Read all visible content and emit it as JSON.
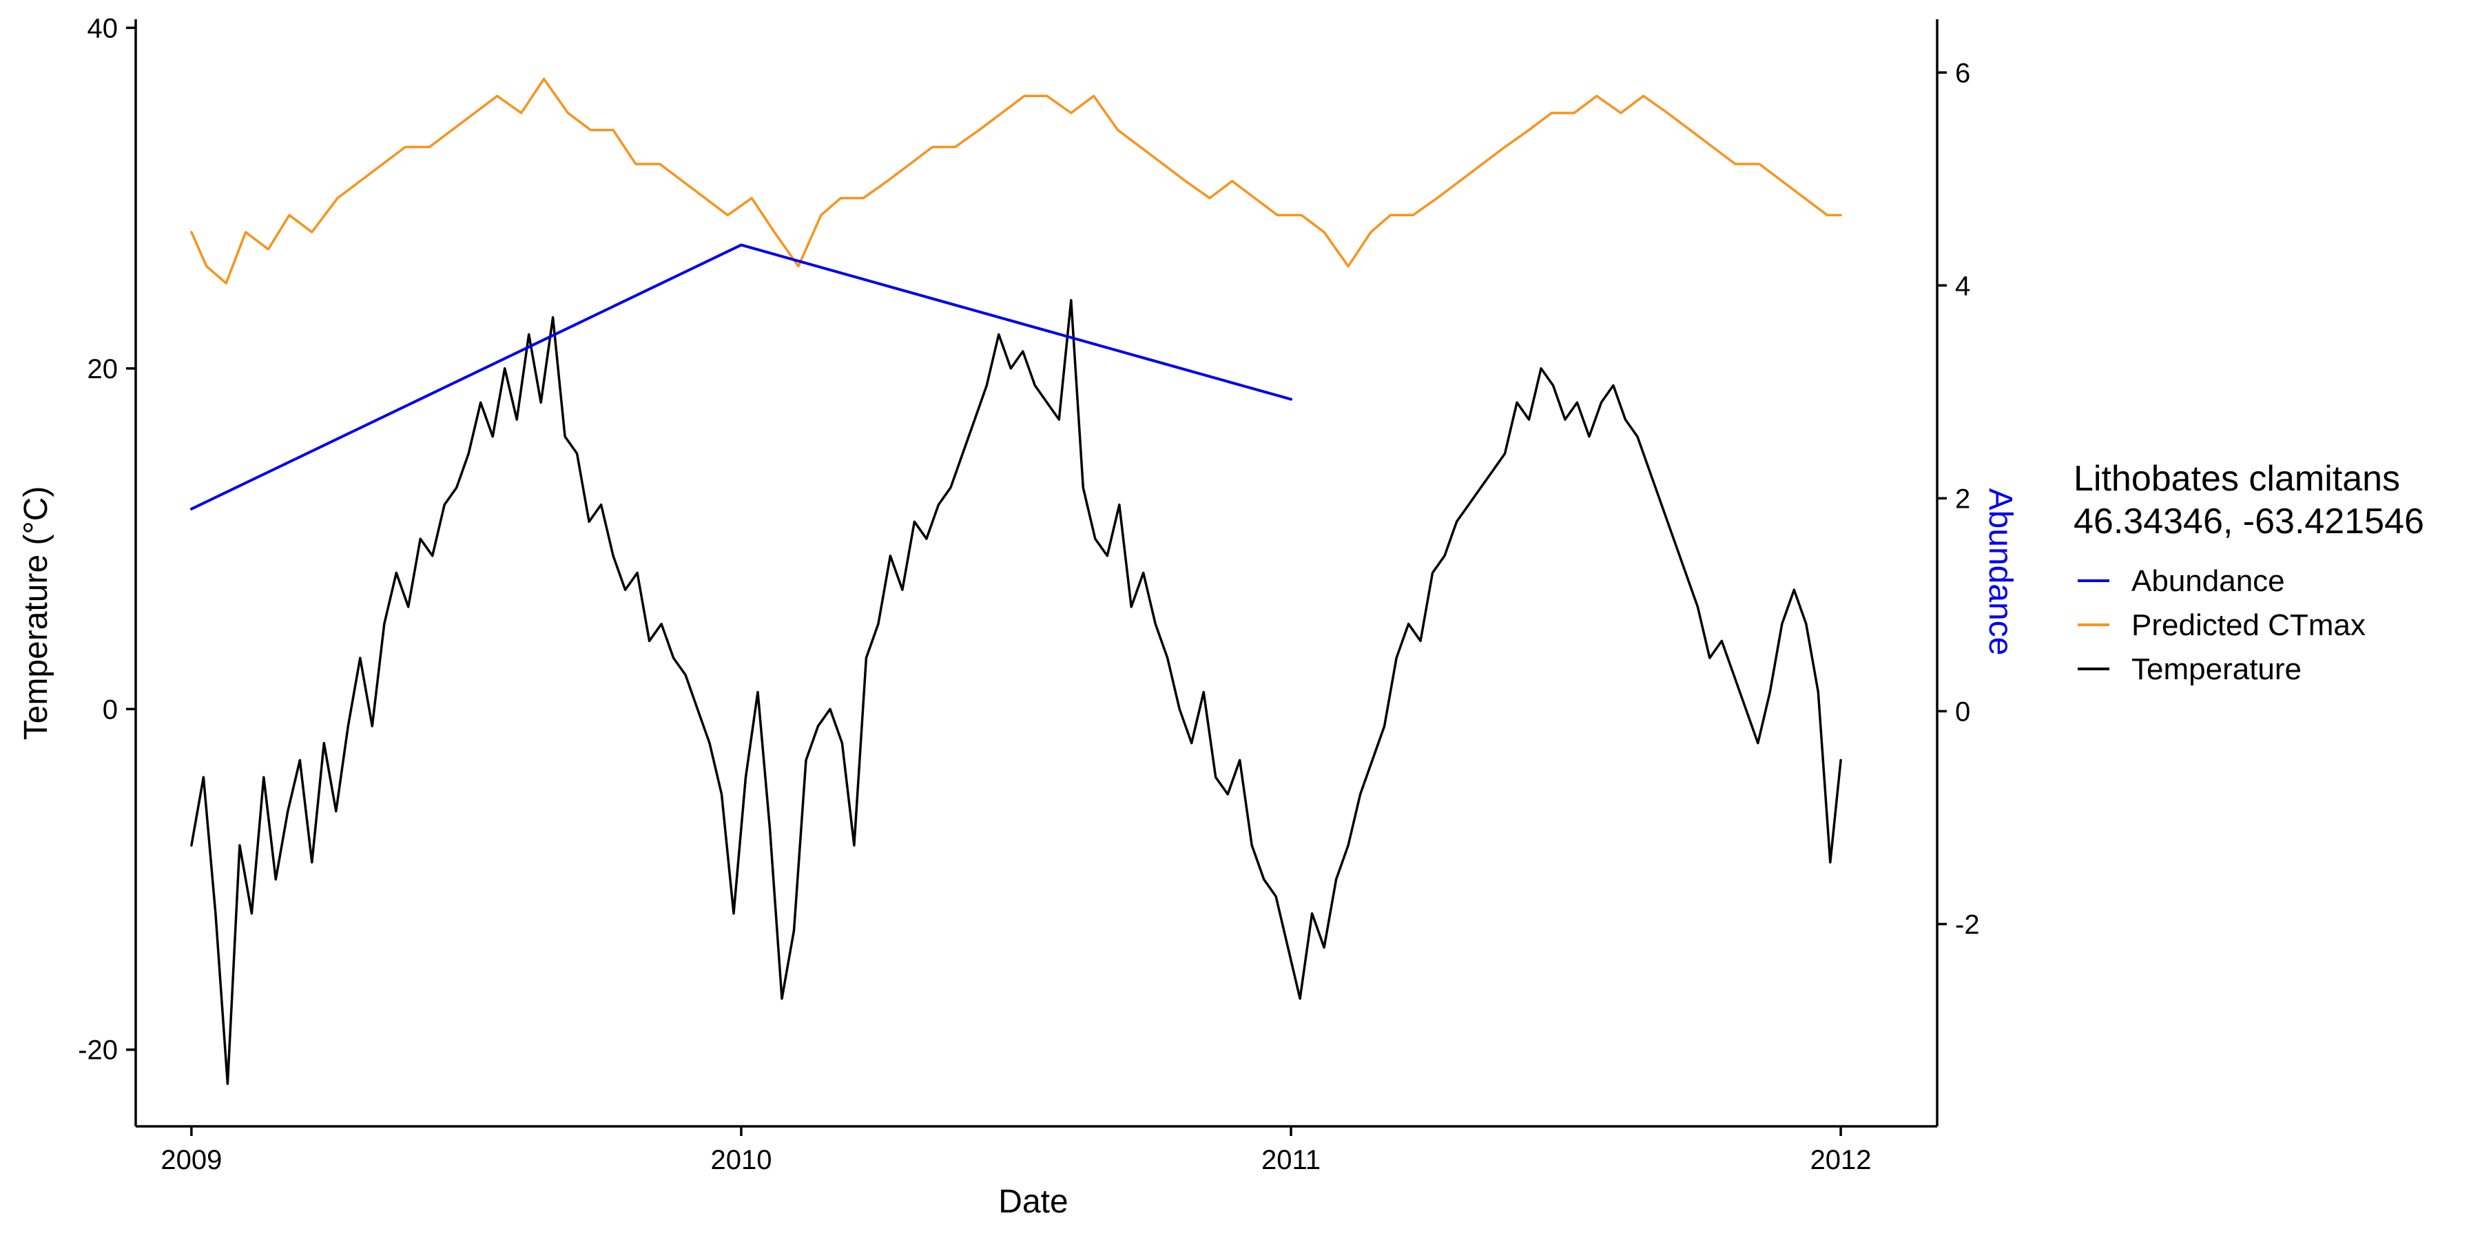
{
  "chart_data": {
    "type": "line",
    "title": "",
    "xlabel": "Date",
    "ylabel_left": "Temperature (°C)",
    "ylabel_right": "Abundance",
    "x_type": "date",
    "xlim": [
      "2008-11-25",
      "2012-03-05"
    ],
    "x_ticks": [
      "2009-01-01",
      "2010-01-01",
      "2011-01-01",
      "2012-01-01"
    ],
    "x_tick_labels": [
      "2009",
      "2010",
      "2011",
      "2012"
    ],
    "ylim_left": [
      -24.5,
      40.5
    ],
    "y_ticks_left": [
      -20,
      0,
      20,
      40
    ],
    "y_tick_labels_left": [
      "-20",
      "0",
      "20",
      "40"
    ],
    "ylim_right": [
      -3.9,
      6.5
    ],
    "y_ticks_right": [
      -2,
      0,
      2,
      4,
      6
    ],
    "y_tick_labels_right": [
      "-2",
      "0",
      "2",
      "4",
      "6"
    ],
    "grid": false,
    "legend": {
      "title_lines": [
        "Lithobates clamitans",
        "46.34346, -63.421546"
      ],
      "placement": "right"
    },
    "series": [
      {
        "name": "Abundance",
        "axis": "right",
        "color": "#0000ee",
        "x": [
          "2009-01-01",
          "2010-01-01",
          "2011-01-01"
        ],
        "y": [
          1.9,
          4.38,
          2.93
        ]
      },
      {
        "name": "Predicted CTmax",
        "axis": "left",
        "color": "#f7941d",
        "x": [
          "2009-01-01",
          "2009-01-11",
          "2009-01-24",
          "2009-02-06",
          "2009-02-21",
          "2009-03-07",
          "2009-03-22",
          "2009-04-08",
          "2009-04-23",
          "2009-05-08",
          "2009-05-23",
          "2009-06-08",
          "2009-06-23",
          "2009-07-08",
          "2009-07-23",
          "2009-08-08",
          "2009-08-23",
          "2009-09-08",
          "2009-09-23",
          "2009-10-08",
          "2009-10-23",
          "2009-11-08",
          "2009-11-23",
          "2009-12-08",
          "2009-12-23",
          "2010-01-08",
          "2010-01-23",
          "2010-02-08",
          "2010-02-23",
          "2010-03-08",
          "2010-03-23",
          "2010-04-08",
          "2010-04-23",
          "2010-05-08",
          "2010-05-23",
          "2010-06-08",
          "2010-06-23",
          "2010-07-08",
          "2010-07-23",
          "2010-08-08",
          "2010-08-23",
          "2010-09-08",
          "2010-09-23",
          "2010-10-08",
          "2010-10-23",
          "2010-11-08",
          "2010-11-23",
          "2010-12-08",
          "2010-12-23",
          "2011-01-08",
          "2011-01-23",
          "2011-02-08",
          "2011-02-23",
          "2011-03-08",
          "2011-03-23",
          "2011-04-08",
          "2011-04-23",
          "2011-05-08",
          "2011-05-23",
          "2011-06-08",
          "2011-06-23",
          "2011-07-08",
          "2011-07-23",
          "2011-08-08",
          "2011-08-23",
          "2011-09-08",
          "2011-09-23",
          "2011-10-08",
          "2011-10-23",
          "2011-11-08",
          "2011-11-23",
          "2011-12-08",
          "2011-12-23",
          "2012-01-01"
        ],
        "y": [
          28,
          26,
          25,
          28,
          27,
          29,
          28,
          30,
          31,
          32,
          33,
          33,
          34,
          35,
          36,
          35,
          37,
          35,
          34,
          34,
          32,
          32,
          31,
          30,
          29,
          30,
          28,
          26,
          29,
          30,
          30,
          31,
          32,
          33,
          33,
          34,
          35,
          36,
          36,
          35,
          36,
          34,
          33,
          32,
          31,
          30,
          31,
          30,
          29,
          29,
          28,
          26,
          28,
          29,
          29,
          30,
          31,
          32,
          33,
          34,
          35,
          35,
          36,
          35,
          36,
          35,
          34,
          33,
          32,
          32,
          31,
          30,
          29,
          29
        ]
      },
      {
        "name": "Temperature",
        "axis": "left",
        "color": "#000000",
        "x": [
          "2009-01-01",
          "2009-01-09",
          "2009-01-17",
          "2009-01-25",
          "2009-02-02",
          "2009-02-10",
          "2009-02-18",
          "2009-02-26",
          "2009-03-06",
          "2009-03-14",
          "2009-03-22",
          "2009-03-30",
          "2009-04-07",
          "2009-04-15",
          "2009-04-23",
          "2009-05-01",
          "2009-05-09",
          "2009-05-17",
          "2009-05-25",
          "2009-06-02",
          "2009-06-10",
          "2009-06-18",
          "2009-06-26",
          "2009-07-04",
          "2009-07-12",
          "2009-07-20",
          "2009-07-28",
          "2009-08-05",
          "2009-08-13",
          "2009-08-21",
          "2009-08-29",
          "2009-09-06",
          "2009-09-14",
          "2009-09-22",
          "2009-09-30",
          "2009-10-08",
          "2009-10-16",
          "2009-10-24",
          "2009-11-01",
          "2009-11-09",
          "2009-11-17",
          "2009-11-25",
          "2009-12-03",
          "2009-12-11",
          "2009-12-19",
          "2009-12-27",
          "2010-01-04",
          "2010-01-12",
          "2010-01-20",
          "2010-01-28",
          "2010-02-05",
          "2010-02-13",
          "2010-02-21",
          "2010-03-01",
          "2010-03-09",
          "2010-03-17",
          "2010-03-25",
          "2010-04-02",
          "2010-04-10",
          "2010-04-18",
          "2010-04-26",
          "2010-05-04",
          "2010-05-12",
          "2010-05-20",
          "2010-05-28",
          "2010-06-05",
          "2010-06-13",
          "2010-06-21",
          "2010-06-29",
          "2010-07-07",
          "2010-07-15",
          "2010-07-23",
          "2010-07-31",
          "2010-08-08",
          "2010-08-16",
          "2010-08-24",
          "2010-09-01",
          "2010-09-09",
          "2010-09-17",
          "2010-09-25",
          "2010-10-03",
          "2010-10-11",
          "2010-10-19",
          "2010-10-27",
          "2010-11-04",
          "2010-11-12",
          "2010-11-20",
          "2010-11-28",
          "2010-12-06",
          "2010-12-14",
          "2010-12-22",
          "2010-12-30",
          "2011-01-07",
          "2011-01-15",
          "2011-01-23",
          "2011-01-31",
          "2011-02-08",
          "2011-02-16",
          "2011-02-24",
          "2011-03-04",
          "2011-03-12",
          "2011-03-20",
          "2011-03-28",
          "2011-04-05",
          "2011-04-13",
          "2011-04-21",
          "2011-04-29",
          "2011-05-07",
          "2011-05-15",
          "2011-05-23",
          "2011-05-31",
          "2011-06-08",
          "2011-06-16",
          "2011-06-24",
          "2011-07-02",
          "2011-07-10",
          "2011-07-18",
          "2011-07-26",
          "2011-08-03",
          "2011-08-11",
          "2011-08-19",
          "2011-08-27",
          "2011-09-04",
          "2011-09-12",
          "2011-09-20",
          "2011-09-28",
          "2011-10-06",
          "2011-10-14",
          "2011-10-22",
          "2011-10-30",
          "2011-11-07",
          "2011-11-15",
          "2011-11-23",
          "2011-12-01",
          "2011-12-09",
          "2011-12-17",
          "2011-12-25",
          "2012-01-01"
        ],
        "y": [
          -8,
          -4,
          -12,
          -22,
          -8,
          -12,
          -4,
          -10,
          -6,
          -3,
          -9,
          -2,
          -6,
          -1,
          3,
          -1,
          5,
          8,
          6,
          10,
          9,
          12,
          13,
          15,
          18,
          16,
          20,
          17,
          22,
          18,
          23,
          16,
          15,
          11,
          12,
          9,
          7,
          8,
          4,
          5,
          3,
          2,
          0,
          -2,
          -5,
          -12,
          -4,
          1,
          -7,
          -17,
          -13,
          -3,
          -1,
          0,
          -2,
          -8,
          3,
          5,
          9,
          7,
          11,
          10,
          12,
          13,
          15,
          17,
          19,
          22,
          20,
          21,
          19,
          18,
          17,
          24,
          13,
          10,
          9,
          12,
          6,
          8,
          5,
          3,
          0,
          -2,
          1,
          -4,
          -5,
          -3,
          -8,
          -10,
          -11,
          -14,
          -17,
          -12,
          -14,
          -10,
          -8,
          -5,
          -3,
          -1,
          3,
          5,
          4,
          8,
          9,
          11,
          12,
          13,
          14,
          15,
          18,
          17,
          20,
          19,
          17,
          18,
          16,
          18,
          19,
          17,
          16,
          14,
          12,
          10,
          8,
          6,
          3,
          4,
          2,
          0,
          -2,
          1,
          5,
          7,
          5,
          1,
          -9,
          -3
        ]
      }
    ]
  }
}
